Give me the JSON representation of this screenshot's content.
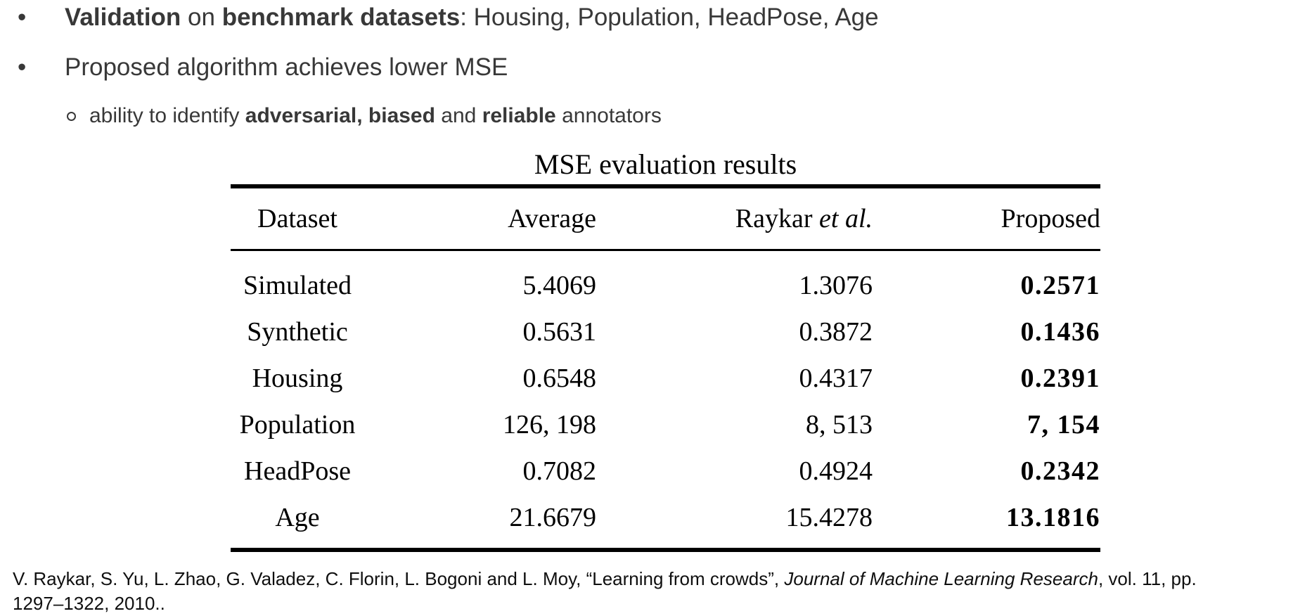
{
  "colors": {
    "background": "#ffffff",
    "bullet_text": "#383838",
    "table_text": "#000000",
    "citation_text": "#0f0f0f"
  },
  "bullets": {
    "item1": {
      "marker": "•",
      "bold1": "Validation",
      "mid": " on ",
      "bold2": "benchmark datasets",
      "tail": ": Housing, Population, HeadPose, Age"
    },
    "item2": {
      "marker": "•",
      "text": "Proposed algorithm achieves lower MSE"
    },
    "sub1": {
      "marker": "o",
      "lead": "ability to identify ",
      "bold1": "adversarial, biased",
      "mid": " and ",
      "bold2": "reliable",
      "tail": " annotators"
    }
  },
  "table": {
    "title": "MSE evaluation results",
    "headers": {
      "dataset": "Dataset",
      "average": "Average",
      "raykar_prefix": "Raykar ",
      "raykar_italic": "et al.",
      "proposed": "Proposed"
    },
    "rows": [
      {
        "dataset": "Simulated",
        "average": "5.4069",
        "raykar": "1.3076",
        "proposed": "0.2571"
      },
      {
        "dataset": "Synthetic",
        "average": "0.5631",
        "raykar": "0.3872",
        "proposed": "0.1436"
      },
      {
        "dataset": "Housing",
        "average": "0.6548",
        "raykar": "0.4317",
        "proposed": "0.2391"
      },
      {
        "dataset": "Population",
        "average": "126, 198",
        "raykar": "8, 513",
        "proposed": "7, 154"
      },
      {
        "dataset": "HeadPose",
        "average": "0.7082",
        "raykar": "0.4924",
        "proposed": "0.2342"
      },
      {
        "dataset": "Age",
        "average": "21.6679",
        "raykar": "15.4278",
        "proposed": "13.1816"
      }
    ]
  },
  "citation": {
    "line1_prefix": "V. Raykar, S. Yu, L. Zhao, G. Valadez, C. Florin, L. Bogoni and L. Moy, “Learning from crowds”, ",
    "line1_italic": "Journal of Machine Learning Research",
    "line1_suffix": ", vol. 11, pp.",
    "line2": "1297–1322, 2010.."
  }
}
